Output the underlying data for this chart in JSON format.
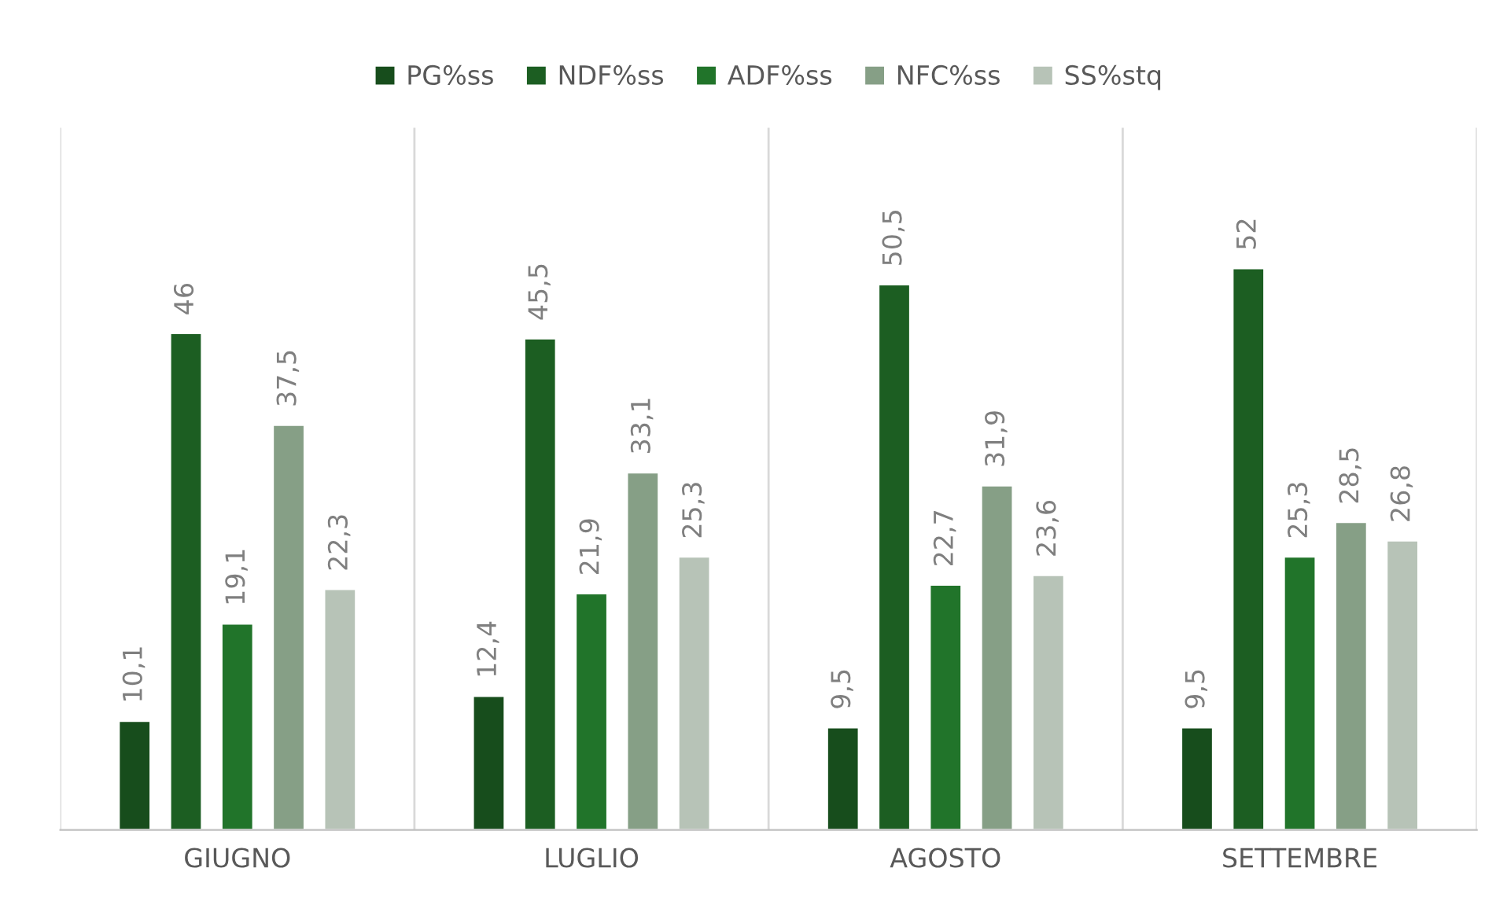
{
  "chart_data": {
    "type": "bar",
    "categories": [
      "GIUGNO",
      "LUGLIO",
      "AGOSTO",
      "SETTEMBRE"
    ],
    "series": [
      {
        "name": "PG%ss",
        "color": "#174d1c",
        "values": [
          10.1,
          12.4,
          9.5,
          9.5
        ],
        "value_labels": [
          "10,1",
          "12,4",
          "9,5",
          "9,5"
        ]
      },
      {
        "name": "NDF%ss",
        "color": "#1c5e22",
        "values": [
          46,
          45.5,
          50.5,
          52
        ],
        "value_labels": [
          "46",
          "45,5",
          "50,5",
          "52"
        ]
      },
      {
        "name": "ADF%ss",
        "color": "#21742a",
        "values": [
          19.1,
          21.9,
          22.7,
          25.3
        ],
        "value_labels": [
          "19,1",
          "21,9",
          "22,7",
          "25,3"
        ]
      },
      {
        "name": "NFC%ss",
        "color": "#869f86",
        "values": [
          37.5,
          33.1,
          31.9,
          28.5
        ],
        "value_labels": [
          "37,5",
          "33,1",
          "31,9",
          "28,5"
        ]
      },
      {
        "name": "SS%stq",
        "color": "#b7c3b7",
        "values": [
          22.3,
          25.3,
          23.6,
          26.8
        ],
        "value_labels": [
          "22,3",
          "25,3",
          "23,6",
          "26,8"
        ]
      }
    ],
    "grid": "x",
    "legend": "top"
  }
}
